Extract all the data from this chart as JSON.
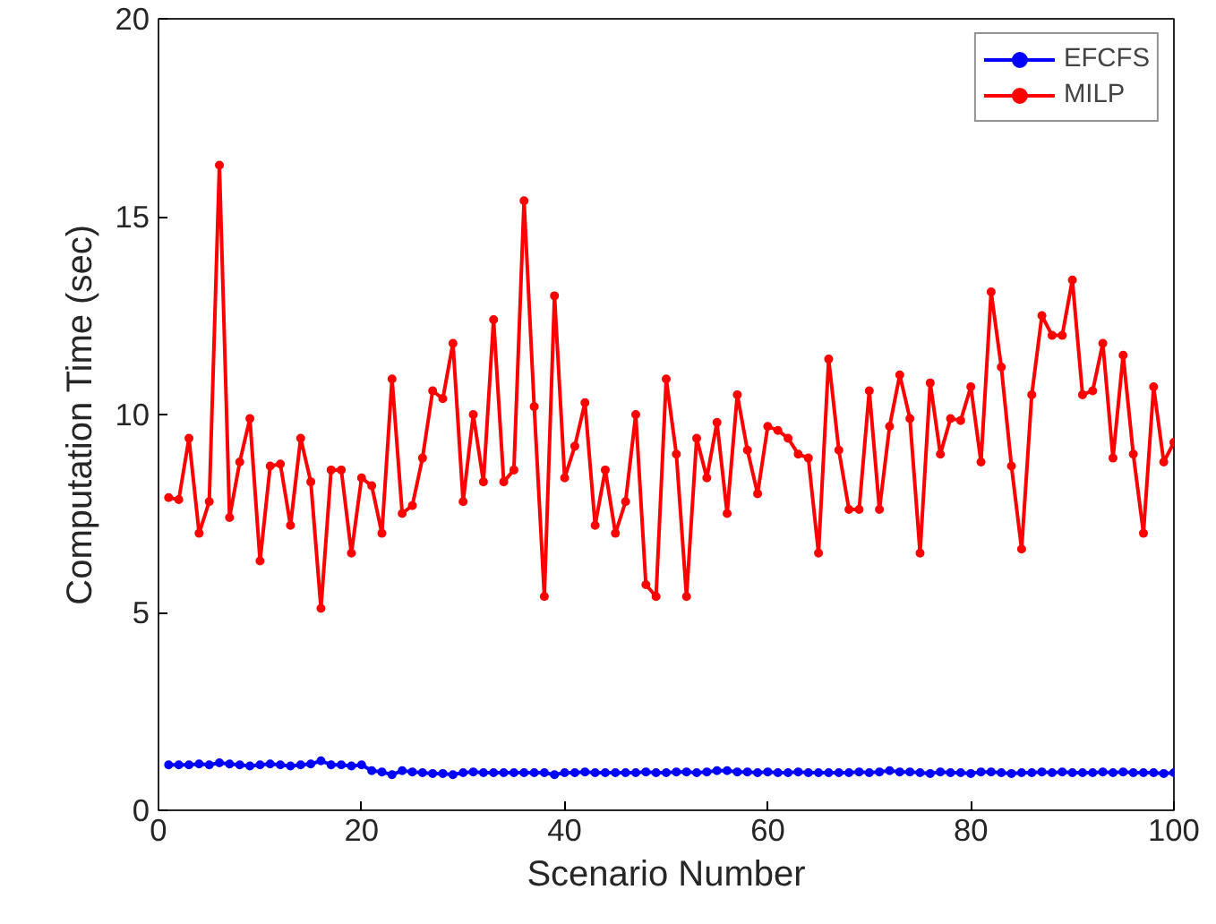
{
  "chart_data": {
    "type": "line",
    "xlabel": "Scenario Number",
    "ylabel": "Computation Time (sec)",
    "x": [
      1,
      2,
      3,
      4,
      5,
      6,
      7,
      8,
      9,
      10,
      11,
      12,
      13,
      14,
      15,
      16,
      17,
      18,
      19,
      20,
      21,
      22,
      23,
      24,
      25,
      26,
      27,
      28,
      29,
      30,
      31,
      32,
      33,
      34,
      35,
      36,
      37,
      38,
      39,
      40,
      41,
      42,
      43,
      44,
      45,
      46,
      47,
      48,
      49,
      50,
      51,
      52,
      53,
      54,
      55,
      56,
      57,
      58,
      59,
      60,
      61,
      62,
      63,
      64,
      65,
      66,
      67,
      68,
      69,
      70,
      71,
      72,
      73,
      74,
      75,
      76,
      77,
      78,
      79,
      80,
      81,
      82,
      83,
      84,
      85,
      86,
      87,
      88,
      89,
      90,
      91,
      92,
      93,
      94,
      95,
      96,
      97,
      98,
      99,
      100
    ],
    "series": [
      {
        "name": "EFCFS",
        "color": "#0000ff",
        "values": [
          1.15,
          1.15,
          1.15,
          1.17,
          1.15,
          1.2,
          1.17,
          1.15,
          1.12,
          1.15,
          1.17,
          1.15,
          1.12,
          1.15,
          1.17,
          1.25,
          1.15,
          1.15,
          1.12,
          1.15,
          1.0,
          0.97,
          0.9,
          1.0,
          0.97,
          0.95,
          0.93,
          0.93,
          0.9,
          0.95,
          0.97,
          0.95,
          0.95,
          0.95,
          0.95,
          0.95,
          0.95,
          0.95,
          0.9,
          0.95,
          0.95,
          0.97,
          0.95,
          0.95,
          0.95,
          0.95,
          0.95,
          0.97,
          0.95,
          0.95,
          0.97,
          0.97,
          0.95,
          0.97,
          1.0,
          1.0,
          0.97,
          0.97,
          0.95,
          0.97,
          0.95,
          0.95,
          0.97,
          0.95,
          0.95,
          0.95,
          0.95,
          0.95,
          0.97,
          0.95,
          0.97,
          1.0,
          0.97,
          0.97,
          0.95,
          0.93,
          0.97,
          0.95,
          0.95,
          0.93,
          0.97,
          0.97,
          0.95,
          0.93,
          0.95,
          0.95,
          0.97,
          0.95,
          0.97,
          0.95,
          0.95,
          0.95,
          0.97,
          0.95,
          0.97,
          0.95,
          0.95,
          0.95,
          0.93,
          0.95
        ]
      },
      {
        "name": "MILP",
        "color": "#ff0000",
        "values": [
          7.9,
          7.85,
          9.4,
          7.0,
          7.8,
          16.3,
          7.4,
          8.8,
          9.9,
          6.3,
          8.7,
          8.75,
          7.2,
          9.4,
          8.3,
          5.1,
          8.6,
          8.6,
          6.5,
          8.4,
          8.2,
          7.0,
          10.9,
          7.5,
          7.7,
          8.9,
          10.6,
          10.4,
          11.8,
          7.8,
          10.0,
          8.3,
          12.4,
          8.3,
          8.6,
          15.4,
          10.2,
          5.4,
          13.0,
          8.4,
          9.2,
          10.3,
          7.2,
          8.6,
          7.0,
          7.8,
          10.0,
          5.7,
          5.4,
          10.9,
          9.0,
          5.4,
          9.4,
          8.4,
          9.8,
          7.5,
          10.5,
          9.1,
          8.0,
          9.7,
          9.6,
          9.4,
          9.0,
          8.9,
          6.5,
          11.4,
          9.1,
          7.6,
          7.6,
          10.6,
          7.6,
          9.7,
          11.0,
          9.9,
          6.5,
          10.8,
          9.0,
          9.9,
          9.85,
          10.7,
          8.8,
          13.1,
          11.2,
          8.7,
          6.6,
          10.5,
          12.5,
          12.0,
          12.0,
          13.4,
          10.5,
          10.6,
          11.8,
          8.9,
          11.5,
          9.0,
          7.0,
          10.7,
          8.8,
          9.3
        ]
      }
    ],
    "xlim": [
      0,
      100
    ],
    "xticks": [
      0,
      20,
      40,
      60,
      80,
      100
    ],
    "ylim": [
      0,
      20
    ],
    "yticks": [
      0,
      5,
      10,
      15,
      20
    ],
    "grid": false,
    "legend": "top right",
    "marker": "circle",
    "line_style": "solid"
  }
}
